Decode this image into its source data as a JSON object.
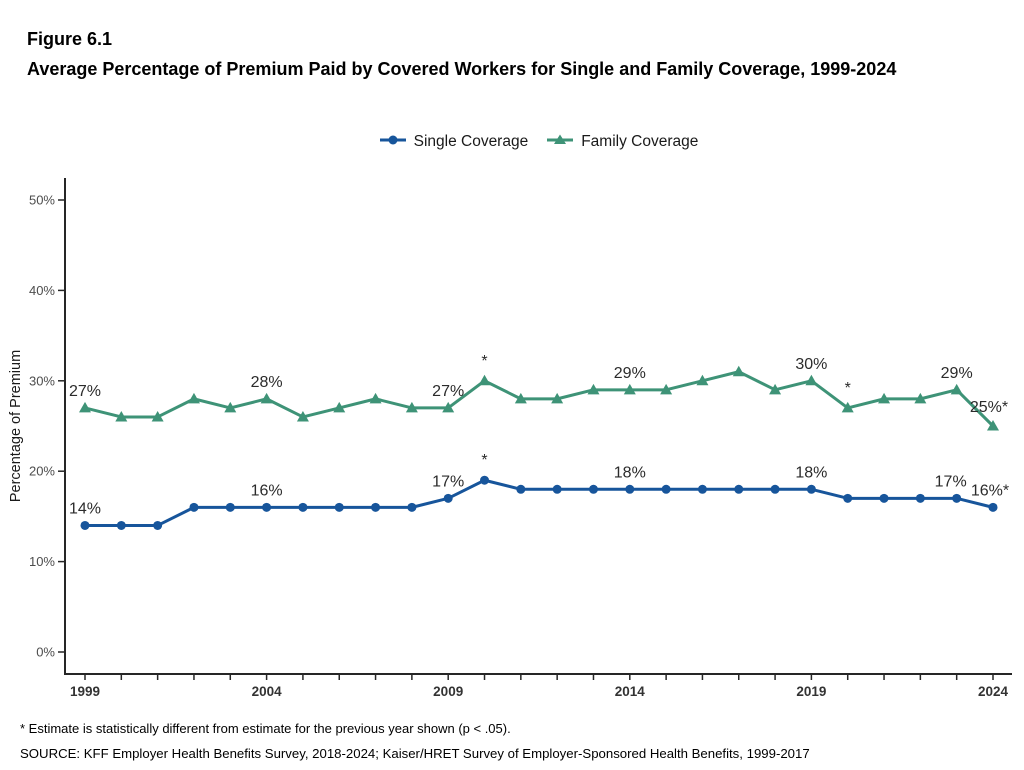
{
  "figure": {
    "label": "Figure 6.1",
    "title": "Average Percentage of Premium Paid by Covered Workers for Single and Family Coverage, 1999-2024"
  },
  "footnote": "* Estimate is statistically different from estimate for the previous year shown (p < .05).",
  "source": "SOURCE: KFF Employer Health Benefits Survey, 2018-2024; Kaiser/HRET Survey of Employer-Sponsored Health Benefits, 1999-2017",
  "colors": {
    "single_coverage": "#17559B",
    "family_coverage": "#3E9377",
    "axis": "#262626",
    "tick_label": "#4d4d4d",
    "data_label": "#2b2b2b"
  },
  "chart_data": {
    "type": "line",
    "title": "Average Percentage of Premium Paid by Covered Workers for Single and Family Coverage, 1999-2024",
    "xlabel": "",
    "ylabel": "Percentage of Premium",
    "ylim": [
      0,
      52
    ],
    "yticks": [
      0,
      10,
      20,
      30,
      40,
      50
    ],
    "ytick_labels": [
      "0%",
      "10%",
      "20%",
      "30%",
      "40%",
      "50%"
    ],
    "xticks": [
      1999,
      2004,
      2009,
      2014,
      2019,
      2024
    ],
    "grid": false,
    "legend_position": "top-center",
    "x": [
      1999,
      2000,
      2001,
      2002,
      2003,
      2004,
      2005,
      2006,
      2007,
      2008,
      2009,
      2010,
      2011,
      2012,
      2013,
      2014,
      2015,
      2016,
      2017,
      2018,
      2019,
      2020,
      2021,
      2022,
      2023,
      2024
    ],
    "series": [
      {
        "name": "Single Coverage",
        "color": "#17559B",
        "marker": "circle",
        "values": [
          14,
          14,
          14,
          16,
          16,
          16,
          16,
          16,
          16,
          16,
          17,
          19,
          18,
          18,
          18,
          18,
          18,
          18,
          18,
          18,
          18,
          17,
          17,
          17,
          17,
          16
        ],
        "point_labels": [
          {
            "x": 1999,
            "text": "14%"
          },
          {
            "x": 2004,
            "text": "16%"
          },
          {
            "x": 2009,
            "text": "17%"
          },
          {
            "x": 2010,
            "text": "*",
            "dy": -15
          },
          {
            "x": 2014,
            "text": "18%"
          },
          {
            "x": 2019,
            "text": "18%"
          },
          {
            "x": 2023,
            "text": "17%",
            "dx": -6
          },
          {
            "x": 2024,
            "text": "16%*",
            "dx": -3
          }
        ]
      },
      {
        "name": "Family Coverage",
        "color": "#3E9377",
        "marker": "triangle",
        "values": [
          27,
          26,
          26,
          28,
          27,
          28,
          26,
          27,
          28,
          27,
          27,
          30,
          28,
          28,
          29,
          29,
          29,
          30,
          31,
          29,
          30,
          27,
          28,
          28,
          29,
          25
        ],
        "point_labels": [
          {
            "x": 1999,
            "text": "27%"
          },
          {
            "x": 2004,
            "text": "28%"
          },
          {
            "x": 2009,
            "text": "27%"
          },
          {
            "x": 2010,
            "text": "*",
            "dy": -15
          },
          {
            "x": 2014,
            "text": "29%"
          },
          {
            "x": 2019,
            "text": "30%"
          },
          {
            "x": 2020,
            "text": "*",
            "dy": -15
          },
          {
            "x": 2023,
            "text": "29%"
          },
          {
            "x": 2024,
            "text": "25%*",
            "dx": -4,
            "dy": -14
          }
        ]
      }
    ]
  }
}
